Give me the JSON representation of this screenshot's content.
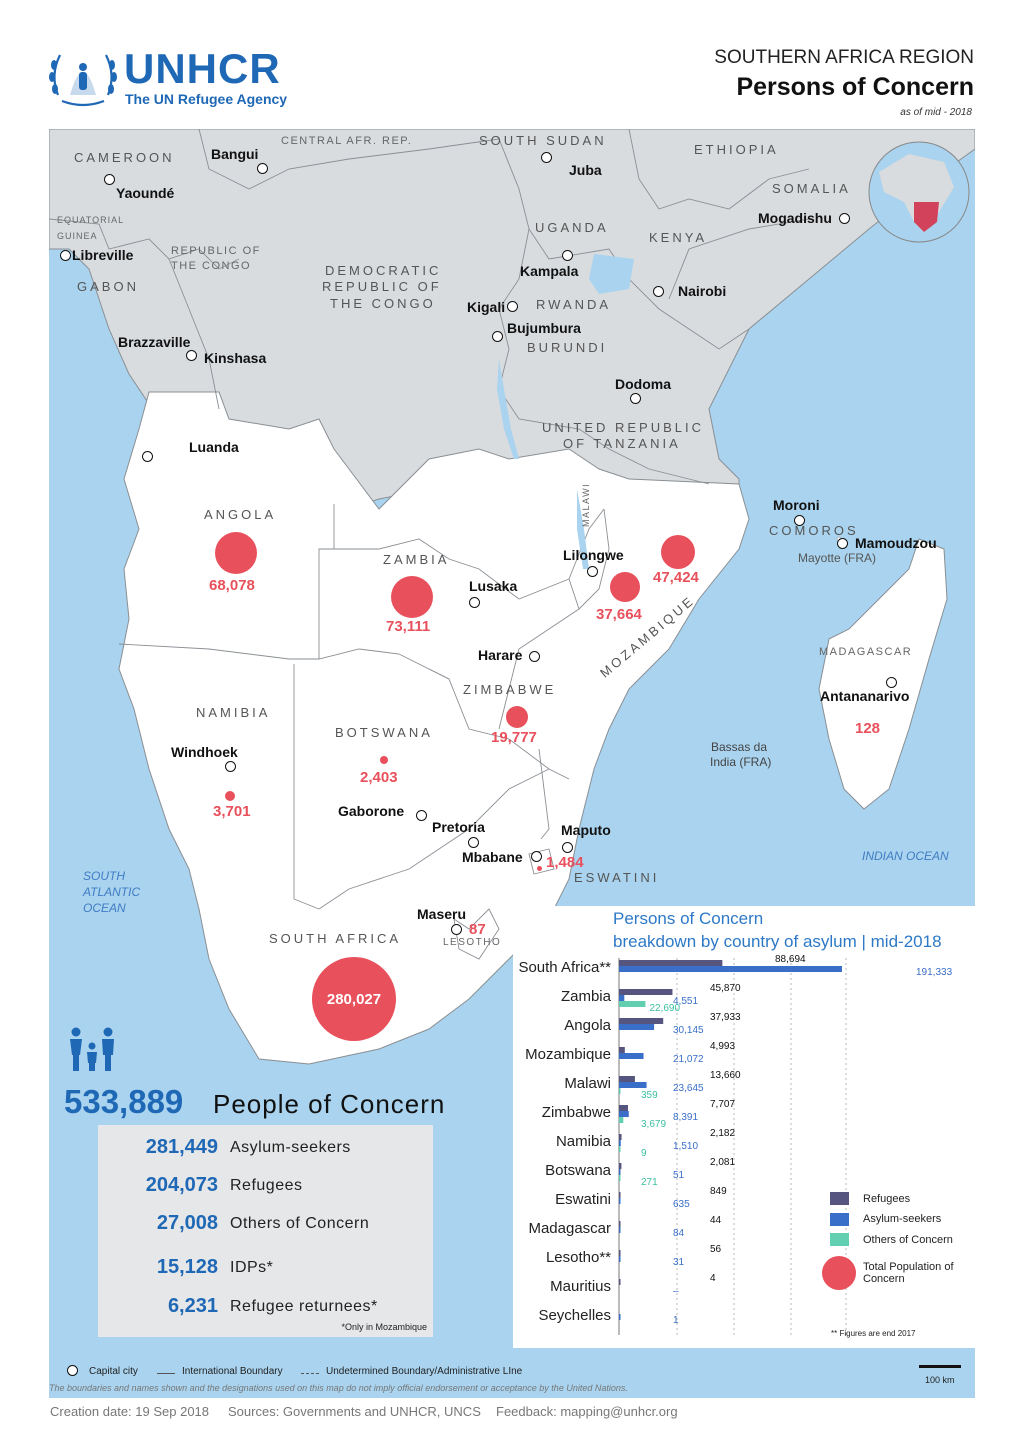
{
  "logo": {
    "name": "UNHCR",
    "tagline": "The UN Refugee Agency"
  },
  "header": {
    "region": "SOUTHERN AFRICA REGION",
    "title": "Persons of Concern",
    "date": "as of mid - 2018"
  },
  "map": {
    "countries": {
      "cameroon": "CAMEROON",
      "car": "CENTRAL AFR. REP.",
      "south_sudan": "SOUTH SUDAN",
      "ethiopia": "ETHIOPIA",
      "somalia": "SOMALIA",
      "eq_guinea_1": "EQUATORIAL",
      "eq_guinea_2": "GUINEA",
      "congo_1": "REPUBLIC OF",
      "congo_2": "THE CONGO",
      "gabon": "GABON",
      "drc_1": "DEMOCRATIC",
      "drc_2": "REPUBLIC OF",
      "drc_3": "THE CONGO",
      "uganda": "UGANDA",
      "kenya": "KENYA",
      "rwanda": "RWANDA",
      "burundi": "BURUNDI",
      "tanzania_1": "UNITED REPUBLIC",
      "tanzania_2": "OF TANZANIA",
      "angola": "ANGOLA",
      "zambia": "ZAMBIA",
      "malawi": "MALAWI",
      "mozambique": "MOZAMBIQUE",
      "comoros": "COMOROS",
      "madagascar": "MADAGASCAR",
      "zimbabwe": "ZIMBABWE",
      "namibia": "NAMIBIA",
      "botswana": "BOTSWANA",
      "eswatini": "ESWATINI",
      "south_africa": "SOUTH AFRICA",
      "lesotho": "LESOTHO"
    },
    "cities": {
      "bangui": "Bangui",
      "yaounde": "Yaoundé",
      "juba": "Juba",
      "mogadishu": "Mogadishu",
      "libreville": "Libreville",
      "kampala": "Kampala",
      "nairobi": "Nairobi",
      "kigali": "Kigali",
      "bujumbura": "Bujumbura",
      "brazzaville": "Brazzaville",
      "kinshasa": "Kinshasa",
      "dodoma": "Dodoma",
      "luanda": "Luanda",
      "moroni": "Moroni",
      "mamoudzou": "Mamoudzou",
      "mayotte": "Mayotte (FRA)",
      "lilongwe": "Lilongwe",
      "lusaka": "Lusaka",
      "harare": "Harare",
      "antananarivo": "Antananarivo",
      "windhoek": "Windhoek",
      "bassas_1": "Bassas da",
      "bassas_2": "India (FRA)",
      "gaborone": "Gaborone",
      "pretoria": "Pretoria",
      "maputo": "Maputo",
      "mbabane": "Mbabane",
      "maseru": "Maseru"
    },
    "seas": {
      "atlantic_1": "SOUTH",
      "atlantic_2": "ATLANTIC",
      "atlantic_3": "OCEAN",
      "indian": "INDIAN OCEAN"
    },
    "poc_values": {
      "angola": "68,078",
      "zambia": "73,111",
      "malawi": "37,664",
      "mozambique": "47,424",
      "zimbabwe": "19,777",
      "botswana": "2,403",
      "namibia": "3,701",
      "madagascar": "128",
      "eswatini": "1,484",
      "lesotho": "87",
      "south_africa": "280,027"
    }
  },
  "summary": {
    "total": "533,889",
    "total_label": "People of Concern",
    "items": [
      {
        "value": "281,449",
        "label": "Asylum-seekers"
      },
      {
        "value": "204,073",
        "label": "Refugees"
      },
      {
        "value": "27,008",
        "label": "Others of Concern"
      },
      {
        "value": "15,128",
        "label": "IDPs*"
      },
      {
        "value": "6,231",
        "label": "Refugee returnees*"
      }
    ],
    "note": "*Only in Mozambique"
  },
  "chart_data": {
    "type": "bar",
    "title": "Persons of Concern",
    "subtitle": "breakdown by country of asylum | mid-2018",
    "categories": [
      "South Africa**",
      "Zambia",
      "Angola",
      "Mozambique",
      "Malawi",
      "Zimbabwe",
      "Namibia",
      "Botswana",
      "Eswatini",
      "Madagascar",
      "Lesotho**",
      "Mauritius",
      "Seychelles"
    ],
    "series": [
      {
        "name": "Refugees",
        "values": [
          88694,
          45870,
          37933,
          4993,
          13660,
          7707,
          2182,
          2081,
          849,
          44,
          56,
          4,
          null
        ],
        "labels": [
          "88,694",
          "45,870",
          "37,933",
          "4,993",
          "13,660",
          "7,707",
          "2,182",
          "2,081",
          "849",
          "44",
          "56",
          "4",
          ""
        ]
      },
      {
        "name": "Asylum-seekers",
        "values": [
          191333,
          4551,
          30145,
          21072,
          23645,
          8391,
          1510,
          51,
          635,
          84,
          31,
          null,
          1
        ],
        "labels": [
          "191,333",
          "4,551",
          "30,145",
          "21,072",
          "23,645",
          "8,391",
          "1,510",
          "51",
          "635",
          "84",
          "31",
          "–",
          "1"
        ]
      },
      {
        "name": "Others of Concern",
        "values": [
          null,
          22690,
          null,
          null,
          359,
          3679,
          9,
          271,
          null,
          null,
          null,
          null,
          null
        ],
        "labels": [
          "",
          "22,690",
          "",
          "",
          "359",
          "3,679",
          "9",
          "271",
          "",
          "",
          "",
          "",
          ""
        ]
      }
    ],
    "legend": [
      "Refugees",
      "Asylum-seekers",
      "Others of Concern",
      "Total Population of Concern"
    ],
    "note": "** Figures are end 2017",
    "colors": {
      "refugees": "#56557f",
      "asylum": "#3a6fc9",
      "others": "#62cfb1",
      "total": "#e8505b"
    }
  },
  "map_legend": {
    "capital": "Capital city",
    "intl": "International Boundary",
    "undetermined": "Undetermined Boundary/Administrative LIne",
    "scale": "100 km"
  },
  "disclaimer": "The boundaries and names shown and the designations used on this map do not imply official endorsement or acceptance by the United Nations.",
  "footer": {
    "created": "Creation date: 19 Sep 2018",
    "sources": "Sources: Governments and UNHCR, UNCS",
    "feedback": "Feedback: mapping@unhcr.org"
  }
}
